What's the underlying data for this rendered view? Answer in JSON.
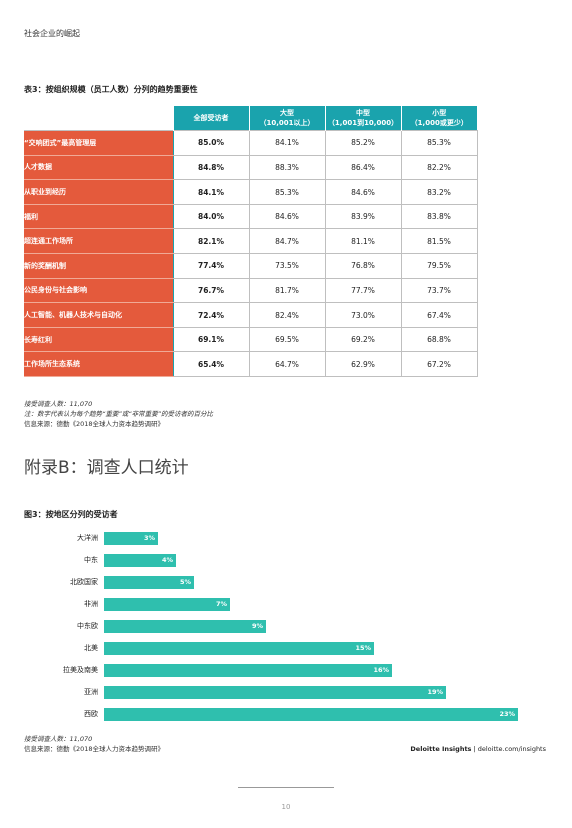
{
  "running_head": "社会企业的崛起",
  "table": {
    "title": "表3：按组织规模（员工人数）分列的趋势重要性",
    "columns": [
      {
        "line1": "全部受访者",
        "line2": ""
      },
      {
        "line1": "大型",
        "line2": "（10,001以上）"
      },
      {
        "line1": "中型",
        "line2": "（1,001到10,000）"
      },
      {
        "line1": "小型",
        "line2": "（1,000或更少）"
      }
    ],
    "rows": [
      {
        "label": "“交响团式”最高管理层",
        "values": [
          "85.0%",
          "84.1%",
          "85.2%",
          "85.3%"
        ]
      },
      {
        "label": "人才数据",
        "values": [
          "84.8%",
          "88.3%",
          "86.4%",
          "82.2%"
        ]
      },
      {
        "label": "从职业到经历",
        "values": [
          "84.1%",
          "85.3%",
          "84.6%",
          "83.2%"
        ]
      },
      {
        "label": "福利",
        "values": [
          "84.0%",
          "84.6%",
          "83.9%",
          "83.8%"
        ]
      },
      {
        "label": "超连通工作场所",
        "values": [
          "82.1%",
          "84.7%",
          "81.1%",
          "81.5%"
        ]
      },
      {
        "label": "新的奖酬机制",
        "values": [
          "77.4%",
          "73.5%",
          "76.8%",
          "79.5%"
        ]
      },
      {
        "label": "公民身份与社会影响",
        "values": [
          "76.7%",
          "81.7%",
          "77.7%",
          "73.7%"
        ]
      },
      {
        "label": "人工智能、机器人技术与自动化",
        "values": [
          "72.4%",
          "82.4%",
          "73.0%",
          "67.4%"
        ]
      },
      {
        "label": "长寿红利",
        "values": [
          "69.1%",
          "69.5%",
          "69.2%",
          "68.8%"
        ]
      },
      {
        "label": "工作场所生态系统",
        "values": [
          "65.4%",
          "64.7%",
          "62.9%",
          "67.2%"
        ]
      }
    ],
    "notes": {
      "respondents": "接受调查人数：11,070",
      "note": "注：数字代表认为每个趋势“重要”或“非常重要”的受访者的百分比",
      "source": "信息来源：德勤《2018全球人力资本趋势调研》"
    }
  },
  "appendix_title": "附录B：调查人口统计",
  "figure": {
    "title": "图3：按地区分列的受访者",
    "respondents": "接受调查人数：11,070",
    "source": "信息来源：德勤《2018全球人力资本趋势调研》"
  },
  "chart_data": {
    "type": "bar",
    "orientation": "horizontal",
    "title": "图3：按地区分列的受访者",
    "categories": [
      "大洋洲",
      "中东",
      "北欧国家",
      "非洲",
      "中东欧",
      "北美",
      "拉美及南美",
      "亚洲",
      "西欧"
    ],
    "values": [
      3,
      4,
      5,
      7,
      9,
      15,
      16,
      19,
      23
    ],
    "value_labels": [
      "3%",
      "4%",
      "5%",
      "7%",
      "9%",
      "15%",
      "16%",
      "19%",
      "23%"
    ],
    "unit": "%",
    "bar_color": "#2fbfae",
    "grid": false
  },
  "brand": {
    "name": "Deloitte Insights",
    "separator": " | ",
    "url": "deloitte.com/insights"
  },
  "page_number": "10",
  "colors": {
    "accent_teal": "#1aa3ad",
    "accent_orange": "#e45a3c",
    "bar_teal": "#2fbfae"
  }
}
